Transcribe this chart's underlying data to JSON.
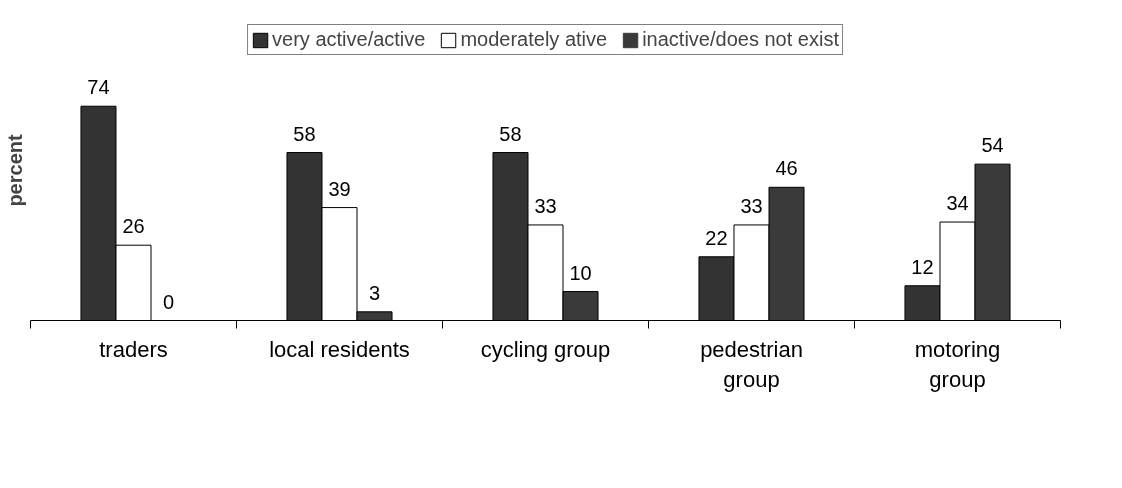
{
  "chart_data": {
    "type": "bar",
    "ylabel": "percent",
    "categories": [
      "traders",
      "local residents",
      "cycling group",
      "pedestrian\ngroup",
      "motoring\ngroup"
    ],
    "series": [
      {
        "name": "very active/active",
        "color": "#333333",
        "values": [
          74,
          58,
          58,
          22,
          12
        ]
      },
      {
        "name": "moderately ative",
        "color": "#ffffff",
        "values": [
          26,
          39,
          33,
          33,
          34
        ]
      },
      {
        "name": "inactive/does not exist",
        "color": "#3a3a3a",
        "values": [
          0,
          3,
          10,
          46,
          54
        ]
      }
    ],
    "data_labels": true,
    "legend": "top",
    "grid": false
  }
}
